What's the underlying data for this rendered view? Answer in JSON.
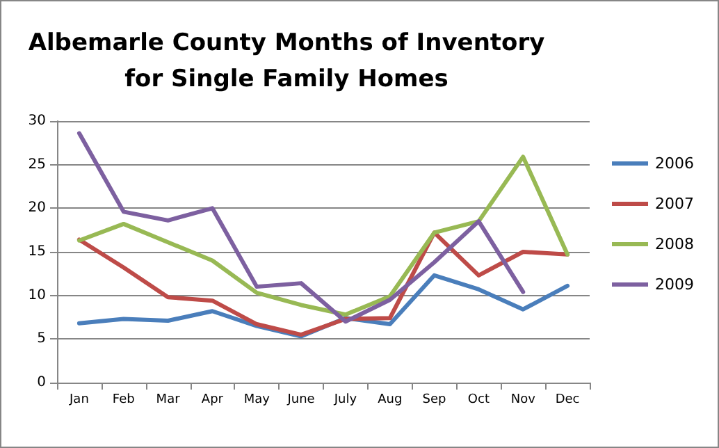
{
  "chart_data": {
    "type": "line",
    "title": "Albemarle County Months of Inventory\nfor Single Family Homes",
    "categories": [
      "Jan",
      "Feb",
      "Mar",
      "Apr",
      "May",
      "June",
      "July",
      "Aug",
      "Sep",
      "Oct",
      "Nov",
      "Dec"
    ],
    "series": [
      {
        "name": "2006",
        "color": "#4a7ebb",
        "values": [
          6.8,
          7.3,
          7.1,
          8.2,
          6.5,
          5.3,
          7.4,
          6.7,
          12.3,
          10.7,
          8.4,
          11.1
        ]
      },
      {
        "name": "2007",
        "color": "#be4b48",
        "values": [
          16.4,
          13.2,
          9.8,
          9.4,
          6.7,
          5.5,
          7.3,
          7.4,
          17.2,
          12.3,
          15.0,
          14.7
        ]
      },
      {
        "name": "2008",
        "color": "#98b954",
        "values": [
          16.3,
          18.2,
          16.1,
          14.0,
          10.3,
          8.9,
          7.8,
          9.9,
          17.2,
          18.5,
          25.9,
          14.7
        ]
      },
      {
        "name": "2009",
        "color": "#7d60a0",
        "values": [
          28.6,
          19.6,
          18.6,
          20.0,
          11.0,
          11.4,
          7.0,
          9.5,
          13.8,
          18.5,
          10.4,
          null
        ]
      }
    ],
    "ylim": [
      0,
      30
    ],
    "yticks": [
      0,
      5,
      10,
      15,
      20,
      25,
      30
    ],
    "grid": "y",
    "legend": "right",
    "marker": "none",
    "line_style": "solid"
  }
}
